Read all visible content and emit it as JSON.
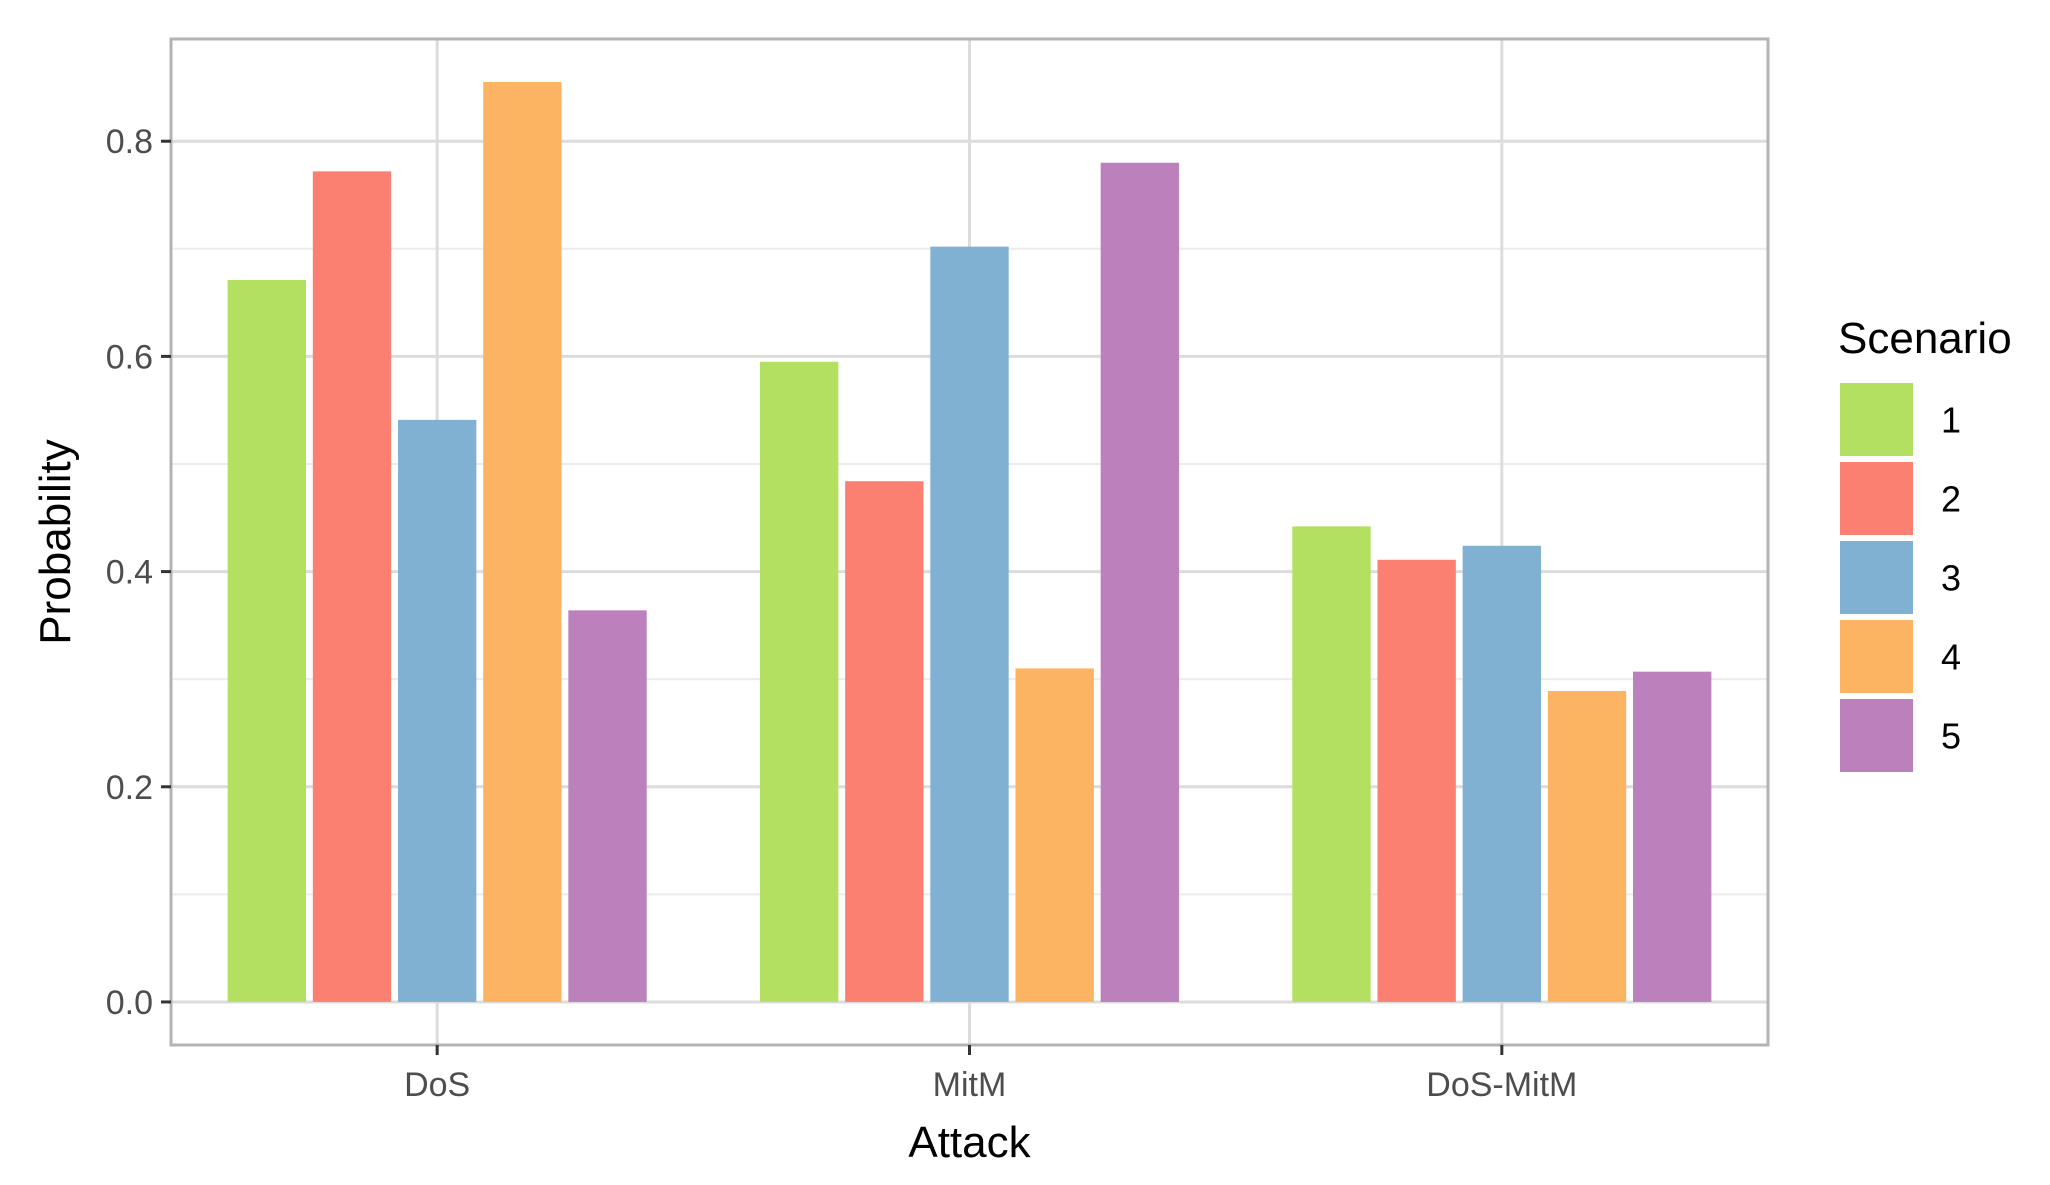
{
  "chart_data": {
    "type": "bar",
    "title": "",
    "xlabel": "Attack",
    "ylabel": "Probability",
    "categories": [
      "DoS",
      "MitM",
      "DoS-MitM"
    ],
    "ylim": [
      -0.04,
      0.895
    ],
    "yticks": [
      "0.0",
      "0.2",
      "0.4",
      "0.6",
      "0.8"
    ],
    "grid": true,
    "legend": {
      "title": "Scenario",
      "placement": "right"
    },
    "series": [
      {
        "name": "1",
        "color": "#b3e061",
        "values": [
          0.671,
          0.595,
          0.442
        ]
      },
      {
        "name": "2",
        "color": "#fb8072",
        "values": [
          0.772,
          0.484,
          0.411
        ]
      },
      {
        "name": "3",
        "color": "#80b1d3",
        "values": [
          0.541,
          0.702,
          0.424
        ]
      },
      {
        "name": "4",
        "color": "#fdb462",
        "values": [
          0.855,
          0.31,
          0.289
        ]
      },
      {
        "name": "5",
        "color": "#bc80bd",
        "values": [
          0.364,
          0.78,
          0.307
        ]
      }
    ]
  }
}
